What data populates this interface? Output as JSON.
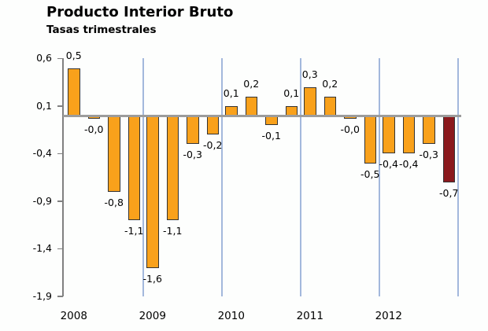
{
  "page": {
    "title": "Producto Interior Bruto",
    "subtitle": "Tasas trimestrales"
  },
  "chart_data": {
    "type": "bar",
    "title": "Producto Interior Bruto",
    "subtitle": "Tasas trimestrales",
    "years": [
      "2008",
      "2009",
      "2010",
      "2011",
      "2012"
    ],
    "quarters_per_year": 4,
    "values": [
      0.5,
      -0.0,
      -0.8,
      -1.1,
      -1.6,
      -1.1,
      -0.3,
      -0.2,
      0.1,
      0.2,
      -0.1,
      0.1,
      0.3,
      0.2,
      -0.0,
      -0.5,
      -0.4,
      -0.4,
      -0.3,
      -0.7
    ],
    "labels": [
      "0,5",
      "-0,0",
      "-0,8",
      "-1,1",
      "-1,6",
      "-1,1",
      "-0,3",
      "-0,2",
      "0,1",
      "0,2",
      "-0,1",
      "0,1",
      "0,3",
      "0,2",
      "-0,0",
      "-0,5",
      "-0,4",
      "-0,4",
      "-0,3",
      "-0,7"
    ],
    "highlight_index": 19,
    "y_ticks": {
      "labels": [
        "0,6",
        "0,1",
        "-0,4",
        "-0,9",
        "-1,4",
        "-1,9"
      ],
      "values": [
        0.6,
        0.1,
        -0.4,
        -0.9,
        -1.4,
        -1.9
      ]
    },
    "ylim": [
      -1.9,
      0.6
    ],
    "grid": "vertical-year-separators",
    "legend": "none",
    "colors": {
      "bar": "#f9a11b",
      "highlight": "#8b191d",
      "bar_border": "#333333",
      "gridline": "#a3b8dc",
      "axis": "#808080",
      "zero_line": "#9c9c9c",
      "background": "#fdfefd",
      "text": "#000000"
    }
  }
}
